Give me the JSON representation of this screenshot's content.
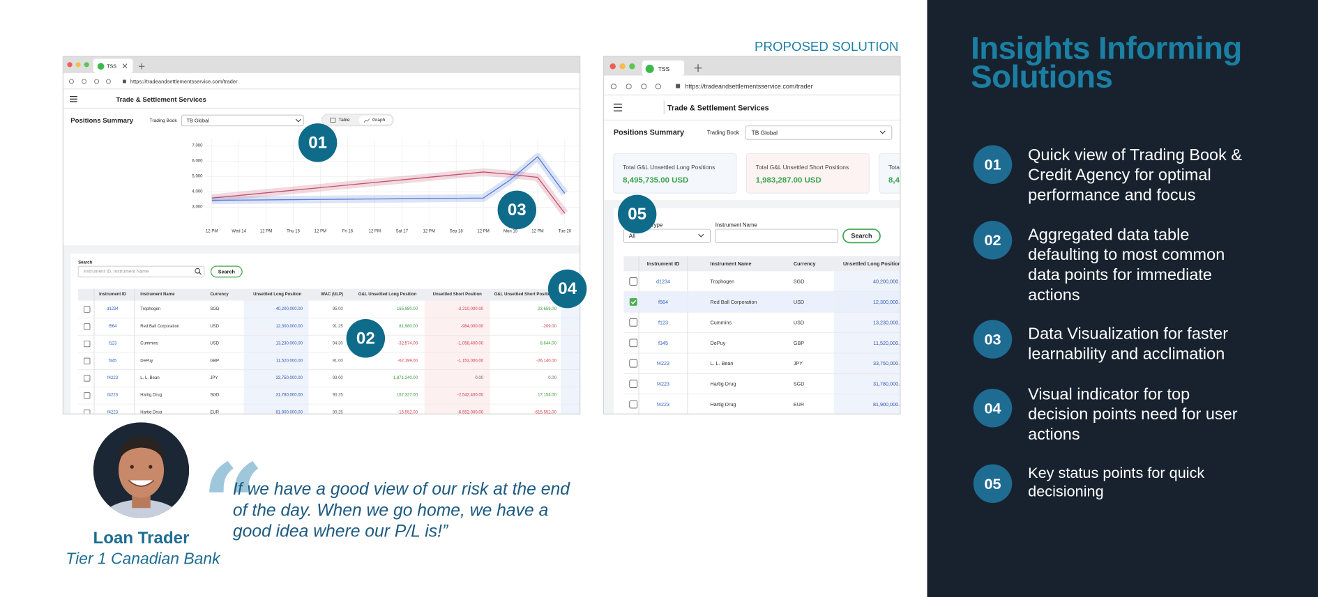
{
  "slide": {
    "label": "PROPOSED SOLUTION",
    "title": "Insights Informing Solutions",
    "points": [
      {
        "number": "01",
        "lines": [
          "Quick view of Trading Book &",
          "Credit Agency for optimal",
          "performance and focus"
        ]
      },
      {
        "number": "02",
        "lines": [
          "Aggregated data table",
          "defaulting to most common",
          "data points for immediate",
          "actions"
        ]
      },
      {
        "number": "03",
        "lines": [
          "Data Visualization for faster",
          "learnability and acclimation"
        ]
      },
      {
        "number": "04",
        "lines": [
          "Visual indicator for top",
          "decision points need for user",
          "actions"
        ]
      },
      {
        "number": "05",
        "lines": [
          "Key status points for quick",
          "decisioning"
        ]
      }
    ],
    "quote": {
      "mark": "“",
      "lines": [
        "If we have a good view of our risk at the end",
        "of the day. When we go home, we have a",
        "good idea where our P/L is!”"
      ],
      "name": "Loan Trader",
      "affiliation": "Tier 1 Canadian Bank"
    }
  },
  "current_screen": {
    "tab": "TSS",
    "url": "https://tradeandsettlementsservice.com/trader",
    "app_title": "Trade & Settlement Services",
    "section": "Positions Summary",
    "trading_book_label": "Trading Book",
    "trading_book": "TB Global",
    "view_toggle": [
      "Table",
      "Graph"
    ],
    "chart": {
      "type": "line",
      "categories": [
        "12 PM",
        "Wed 14",
        "12 PM",
        "Thu 15",
        "12 PM",
        "Fri 16",
        "12 PM",
        "Sat 17",
        "12 PM",
        "Sep 18",
        "12 PM",
        "Mon 19",
        "12 PM",
        "Tue 20"
      ],
      "ylim": [
        2000,
        7600
      ],
      "yticks": [
        {
          "value": 3000,
          "label": "3,000"
        },
        {
          "value": 4000,
          "label": "4,000"
        },
        {
          "value": 5000,
          "label": "5,000"
        },
        {
          "value": 6000,
          "label": "6,000"
        },
        {
          "value": 7000,
          "label": "7,000"
        }
      ],
      "grid": true,
      "series": [
        {
          "color": "#c2506f",
          "values": [
            3600,
            3770,
            3940,
            4110,
            4280,
            4450,
            4620,
            4790,
            4960,
            5130,
            5300,
            5150,
            4950,
            2600
          ]
        },
        {
          "color": "#5b7fd6",
          "values": [
            3450,
            3465,
            3480,
            3495,
            3510,
            3525,
            3540,
            3555,
            3570,
            3585,
            3600,
            4800,
            6300,
            3900
          ]
        }
      ]
    },
    "search": {
      "label": "Search",
      "placeholder": "Instrument ID, Instrument Name",
      "button": "Search"
    },
    "table": {
      "columns": [
        "Instrument ID",
        "Instrument Name",
        "Currency",
        "Unsettled Long Position",
        "WAC (ULP)",
        "G&L Unsettled Long Position",
        "Unsettled Short Position",
        "G&L Unsettled Short Position"
      ],
      "rows": [
        [
          "d1234",
          "Trophogen",
          "SGD",
          "40,200,000.00",
          "95.00",
          "165,980.00",
          "-3,210,000.00",
          "23,659.00"
        ],
        [
          "f564",
          "Red Ball Corporation",
          "USD",
          "12,300,000.00",
          "91.25",
          "81,980.00",
          "-984,000.00",
          "-209.00"
        ],
        [
          "f123",
          "Cummins",
          "USD",
          "13,230,000.00",
          "94.30",
          "-32,574.00",
          "-1,058,400.00",
          "8,644.00"
        ],
        [
          "f345",
          "DePuy",
          "GBP",
          "11,520,000.00",
          "91.00",
          "-62,199.00",
          "-1,152,000.00",
          "-26,140.00"
        ],
        [
          "f4223",
          "L. L. Bean",
          "JPY",
          "33,750,000.00",
          "93.00",
          "1,871,240.00",
          "0.00",
          "0.00"
        ],
        [
          "f4223",
          "Hartig Drug",
          "SGD",
          "31,780,000.00",
          "90.25",
          "167,327.00",
          "-2,542,400.00",
          "17,154.00"
        ],
        [
          "f4223",
          "Hartig Drug",
          "EUR",
          "81,900,000.00",
          "90.25",
          "-15,552.00",
          "-6,552,000.00",
          "-615,552.00"
        ]
      ]
    }
  },
  "proposed_screen": {
    "tab": "TSS",
    "url": "https://tradeandsettlementsservice.com/trader",
    "app_title": "Trade & Settlement Services",
    "section": "Positions Summary",
    "trading_book_label": "Trading Book",
    "trading_book": "TB Global",
    "cards": [
      {
        "label": "Total G&L Unsettled Long Positions",
        "value": "8,495,735.00 USD"
      },
      {
        "label": "Total G&L Unsettled Short Positions",
        "value": "1,983,287.00 USD"
      },
      {
        "label": "Tota",
        "value": "8,4"
      }
    ],
    "filters": {
      "type_label": "Instrument Type",
      "type_value": "All",
      "name_label": "Instrument Name",
      "button": "Search"
    },
    "table": {
      "columns": [
        "Instrument ID",
        "Instrument Name",
        "Currency",
        "Unsettled Long Position"
      ],
      "rows": [
        [
          "d1234",
          "Trophogen",
          "SGD",
          "40,200,000.00"
        ],
        [
          "f564",
          "Red Ball Corporation",
          "USD",
          "12,300,000.00"
        ],
        [
          "f123",
          "Cummins",
          "USD",
          "13,230,000.00"
        ],
        [
          "f345",
          "DePuy",
          "GBP",
          "11,520,000.00"
        ],
        [
          "f4223",
          "L. L. Bean",
          "JPY",
          "33,750,000.00"
        ],
        [
          "f4223",
          "Hartig Drug",
          "SGD",
          "31,780,000.00"
        ],
        [
          "f4223",
          "Hartig Drug",
          "EUR",
          "81,900,000.00"
        ]
      ]
    }
  },
  "badges": [
    "01",
    "02",
    "03",
    "04",
    "05"
  ]
}
